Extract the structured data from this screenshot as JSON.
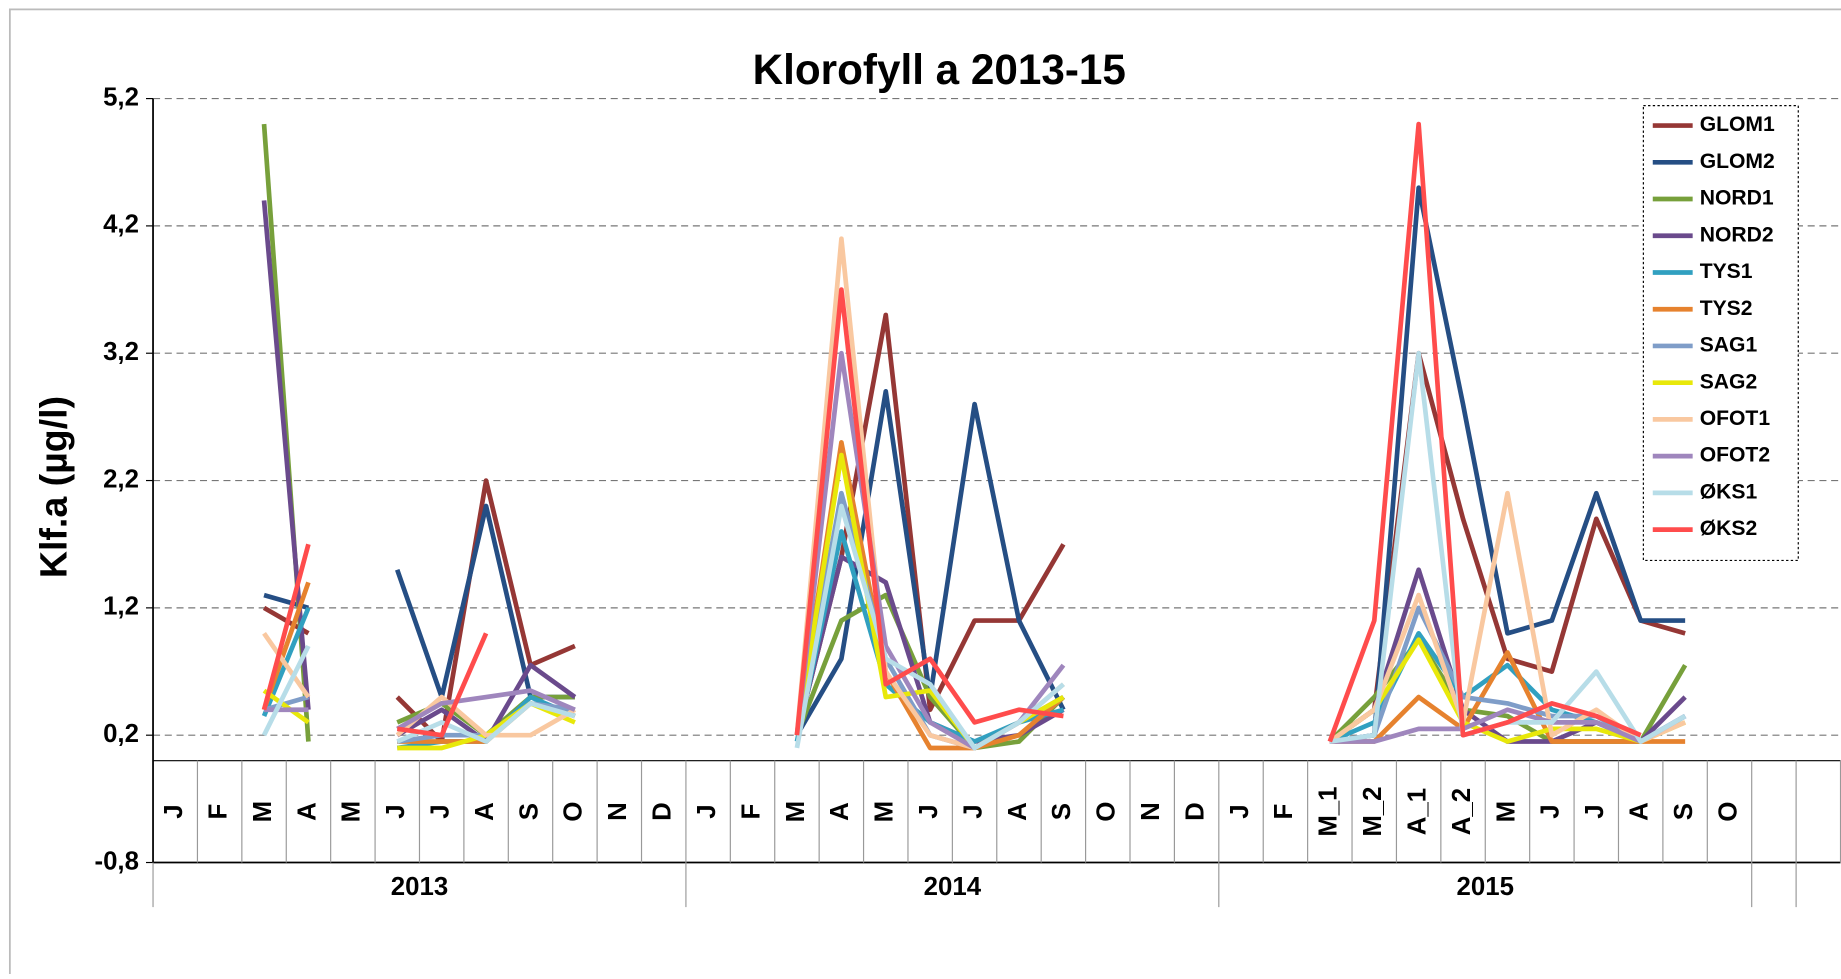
{
  "chart_data": {
    "type": "line",
    "title": "Klorofyll a 2013-15",
    "y_label": "Klf.a (µg/l)",
    "categories": [
      "J",
      "F",
      "M",
      "A",
      "M",
      "J",
      "J",
      "A",
      "S",
      "O",
      "N",
      "D",
      "J",
      "F",
      "M",
      "A",
      "M",
      "J",
      "J",
      "A",
      "S",
      "O",
      "N",
      "D",
      "J",
      "F",
      "M_1",
      "M_2",
      "A_1",
      "A_2",
      "M",
      "J",
      "J",
      "A",
      "S",
      "O",
      null,
      null
    ],
    "groups": [
      "2013",
      "2014",
      "2015"
    ],
    "ylim": [
      -0.8,
      5.2
    ],
    "yticks": [
      {
        "value": -0.8,
        "label": "-0,8"
      },
      {
        "value": 0.2,
        "label": "0,2"
      },
      {
        "value": 1.2,
        "label": "1,2"
      },
      {
        "value": 2.2,
        "label": "2,2"
      },
      {
        "value": 3.2,
        "label": "3,2"
      },
      {
        "value": 4.2,
        "label": "4,2"
      },
      {
        "value": 5.2,
        "label": "5,2"
      }
    ],
    "grid": true,
    "legend": "top-right",
    "series": [
      {
        "name": "GLOM1",
        "color": "#953735",
        "values": [
          null,
          null,
          1.2,
          1.0,
          null,
          0.5,
          0.15,
          2.2,
          0.75,
          0.9,
          null,
          null,
          null,
          null,
          0.2,
          1.6,
          3.5,
          0.4,
          1.1,
          1.1,
          1.7,
          null,
          null,
          null,
          null,
          null,
          0.15,
          0.4,
          3.2,
          1.9,
          0.8,
          0.7,
          1.9,
          1.1,
          1.0,
          null,
          null,
          null
        ]
      },
      {
        "name": "GLOM2",
        "color": "#254e84",
        "values": [
          null,
          null,
          1.3,
          1.2,
          null,
          1.5,
          0.5,
          2.0,
          0.5,
          0.5,
          null,
          null,
          null,
          null,
          0.2,
          0.8,
          2.9,
          0.5,
          2.8,
          1.1,
          0.4,
          null,
          null,
          null,
          null,
          null,
          0.15,
          0.2,
          4.5,
          2.8,
          1.0,
          1.1,
          2.1,
          1.1,
          1.1,
          null,
          null,
          null
        ]
      },
      {
        "name": "NORD1",
        "color": "#77a03b",
        "values": [
          null,
          null,
          5.0,
          0.15,
          null,
          0.3,
          0.45,
          0.2,
          0.5,
          0.5,
          null,
          null,
          null,
          null,
          0.2,
          1.1,
          1.3,
          0.5,
          0.1,
          0.15,
          0.5,
          null,
          null,
          null,
          null,
          null,
          0.15,
          0.5,
          0.95,
          0.4,
          0.35,
          0.15,
          0.15,
          0.15,
          0.75,
          null,
          null,
          null
        ]
      },
      {
        "name": "NORD2",
        "color": "#6a4a8c",
        "values": [
          null,
          null,
          4.4,
          0.4,
          null,
          0.2,
          0.4,
          0.15,
          0.75,
          0.5,
          null,
          null,
          null,
          null,
          0.2,
          1.6,
          1.4,
          0.3,
          0.15,
          0.2,
          0.4,
          null,
          null,
          null,
          null,
          null,
          0.15,
          0.4,
          1.5,
          0.4,
          0.15,
          0.15,
          0.3,
          0.15,
          0.5,
          null,
          null,
          null
        ]
      },
      {
        "name": "TYS1",
        "color": "#31a0c0",
        "values": [
          null,
          null,
          0.35,
          1.2,
          null,
          0.1,
          0.15,
          0.15,
          0.5,
          0.35,
          null,
          null,
          null,
          null,
          0.15,
          1.8,
          0.6,
          0.3,
          0.15,
          0.3,
          0.4,
          null,
          null,
          null,
          null,
          null,
          0.15,
          0.3,
          1.0,
          0.5,
          0.75,
          0.4,
          0.3,
          0.15,
          0.35,
          null,
          null,
          null
        ]
      },
      {
        "name": "TYS2",
        "color": "#e6822e",
        "values": [
          null,
          null,
          0.4,
          1.4,
          null,
          0.15,
          0.15,
          0.15,
          0.45,
          0.35,
          null,
          null,
          null,
          null,
          0.2,
          2.5,
          0.7,
          0.1,
          0.1,
          0.2,
          0.5,
          null,
          null,
          null,
          null,
          null,
          0.15,
          0.15,
          0.5,
          0.25,
          0.85,
          0.15,
          0.15,
          0.15,
          0.15,
          null,
          null,
          null
        ]
      },
      {
        "name": "SAG1",
        "color": "#7f9dc8",
        "values": [
          null,
          null,
          0.4,
          0.5,
          null,
          0.15,
          0.2,
          0.2,
          0.45,
          0.4,
          null,
          null,
          null,
          null,
          0.2,
          2.1,
          0.8,
          0.2,
          0.1,
          0.3,
          0.5,
          null,
          null,
          null,
          null,
          null,
          0.15,
          0.2,
          1.2,
          0.5,
          0.45,
          0.35,
          0.35,
          0.15,
          0.35,
          null,
          null,
          null
        ]
      },
      {
        "name": "SAG2",
        "color": "#e8e80a",
        "values": [
          null,
          null,
          0.55,
          0.3,
          null,
          0.1,
          0.1,
          0.2,
          0.45,
          0.3,
          null,
          null,
          null,
          null,
          0.2,
          2.4,
          0.5,
          0.55,
          0.1,
          0.3,
          0.5,
          null,
          null,
          null,
          null,
          null,
          0.15,
          0.4,
          0.95,
          0.3,
          0.15,
          0.25,
          0.25,
          0.15,
          0.3,
          null,
          null,
          null
        ]
      },
      {
        "name": "OFOT1",
        "color": "#f9c8a0",
        "values": [
          null,
          null,
          1.0,
          0.5,
          null,
          0.2,
          0.5,
          0.2,
          0.2,
          0.4,
          null,
          null,
          null,
          null,
          0.2,
          4.1,
          0.7,
          0.2,
          0.1,
          0.3,
          0.6,
          null,
          null,
          null,
          null,
          null,
          0.15,
          0.4,
          1.3,
          0.3,
          2.1,
          0.2,
          0.4,
          0.15,
          0.3,
          null,
          null,
          null
        ]
      },
      {
        "name": "OFOT2",
        "color": "#9f86bd",
        "values": [
          null,
          null,
          0.4,
          0.4,
          null,
          0.25,
          0.45,
          0.5,
          0.55,
          0.4,
          null,
          null,
          null,
          null,
          0.2,
          3.2,
          0.9,
          0.3,
          0.1,
          0.3,
          0.75,
          null,
          null,
          null,
          null,
          null,
          0.15,
          0.15,
          0.25,
          0.25,
          0.4,
          0.3,
          0.3,
          0.15,
          0.35,
          null,
          null,
          null
        ]
      },
      {
        "name": "ØKS1",
        "color": "#b7dde8",
        "values": [
          null,
          null,
          0.2,
          0.9,
          null,
          0.15,
          0.3,
          0.15,
          0.45,
          0.35,
          null,
          null,
          null,
          null,
          0.1,
          2.0,
          0.8,
          0.6,
          0.1,
          0.3,
          0.6,
          null,
          null,
          null,
          null,
          null,
          0.15,
          0.2,
          3.2,
          0.2,
          0.3,
          0.3,
          0.7,
          0.15,
          0.35,
          null,
          null,
          null
        ]
      },
      {
        "name": "ØKS2",
        "color": "#ff4c4c",
        "values": [
          null,
          null,
          0.4,
          1.7,
          null,
          0.25,
          0.2,
          1.0,
          null,
          null,
          null,
          null,
          null,
          null,
          0.2,
          3.7,
          0.6,
          0.8,
          0.3,
          0.4,
          0.35,
          null,
          null,
          null,
          null,
          null,
          0.15,
          1.1,
          5.0,
          0.2,
          0.3,
          0.45,
          0.35,
          0.2,
          null,
          null,
          null,
          null
        ]
      }
    ]
  }
}
